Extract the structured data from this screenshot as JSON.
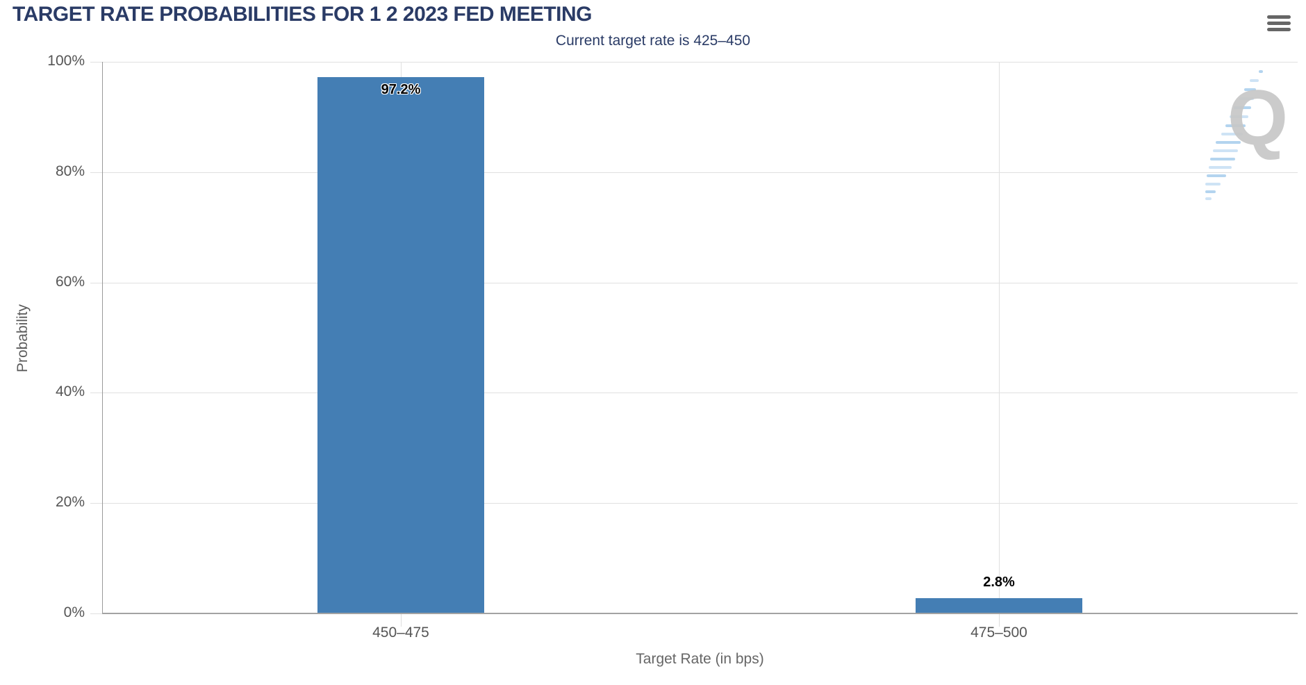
{
  "header": {
    "title": "TARGET RATE PROBABILITIES FOR 1 2 2023 FED MEETING",
    "menu_icon": "hamburger-icon"
  },
  "chart_data": {
    "type": "bar",
    "title": "TARGET RATE PROBABILITIES FOR 1 2 2023 FED MEETING",
    "subtitle": "Current target rate is 425–450",
    "categories": [
      "450–475",
      "475–500"
    ],
    "values": [
      97.2,
      2.8
    ],
    "value_labels": [
      "97.2%",
      "2.8%"
    ],
    "xlabel": "Target Rate (in bps)",
    "ylabel": "Probability",
    "ylim": [
      0,
      100
    ],
    "ytick_values": [
      0,
      20,
      40,
      60,
      80,
      100
    ],
    "ytick_labels": [
      "0%",
      "20%",
      "40%",
      "60%",
      "80%",
      "100%"
    ],
    "grid": true,
    "legend": "none",
    "bar_color": "#447EB4"
  },
  "watermark": {
    "letter": "Q"
  },
  "colors": {
    "title": "#2A3B66",
    "bar": "#447EB4",
    "gridline": "#E0E0E0",
    "axis_text": "#555555"
  }
}
